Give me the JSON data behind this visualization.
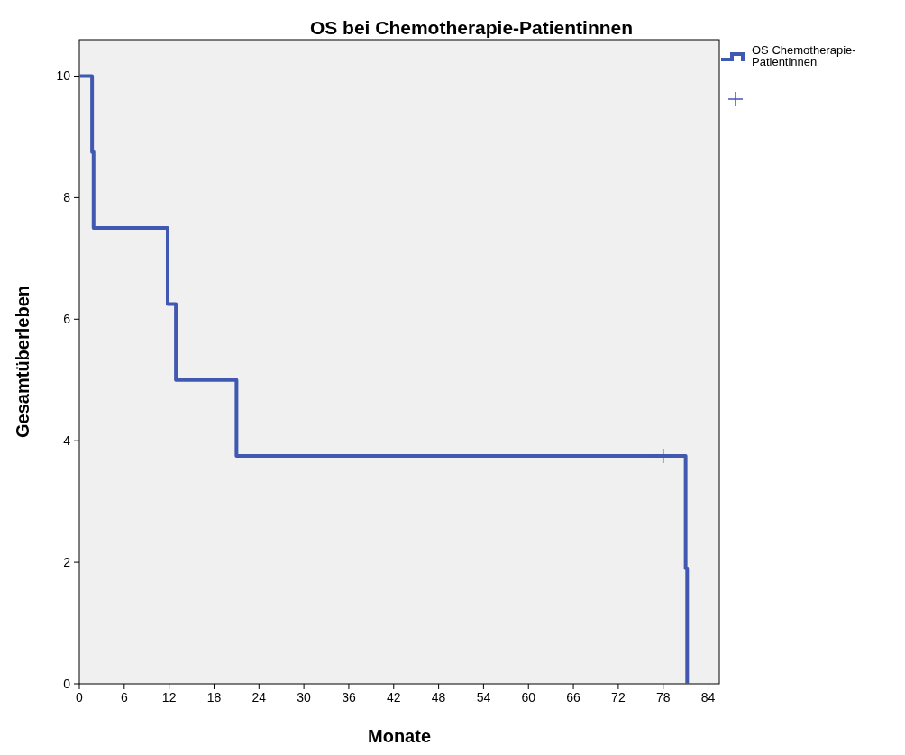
{
  "chart_data": {
    "type": "step",
    "title": "OS bei Chemotherapie-Patientinnen",
    "xlabel": "Monate",
    "ylabel": "Gesamtüberleben",
    "series": [
      {
        "name": "OS Chemotherapie-Patientinnen",
        "color": "#4058b0",
        "x": [
          0,
          1.7,
          1.9,
          11.8,
          12.9,
          21,
          81,
          81.2
        ],
        "values": [
          10,
          8.75,
          7.5,
          6.25,
          5,
          3.75,
          1.9,
          0
        ]
      },
      {
        "type": "scatter",
        "marker": "cross",
        "color": "#4058b0",
        "x": [
          78
        ],
        "values": [
          3.75
        ]
      }
    ],
    "xlim": [
      0,
      85.5
    ],
    "xticks": [
      0,
      6,
      12,
      18,
      24,
      30,
      36,
      42,
      48,
      54,
      60,
      66,
      72,
      78,
      84
    ],
    "ylim": [
      0,
      10.6
    ],
    "yticks": [
      0,
      2,
      4,
      6,
      8,
      10
    ],
    "legend": "top right"
  }
}
